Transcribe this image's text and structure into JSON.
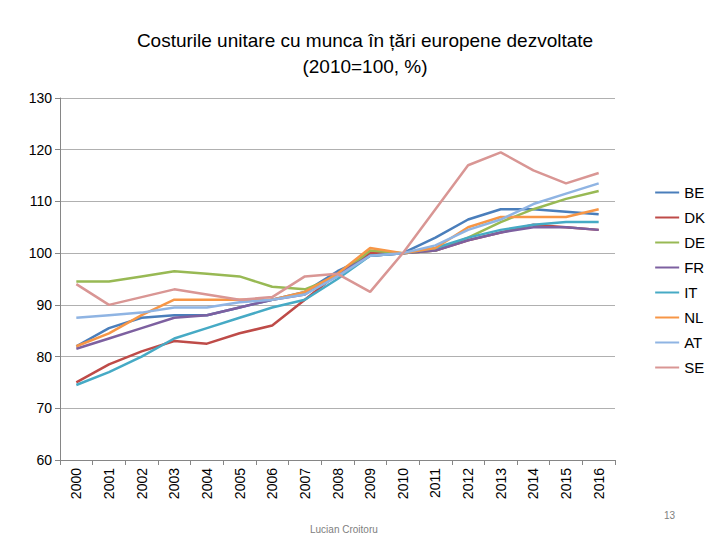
{
  "chart_data": {
    "type": "line",
    "title": "Costurile unitare cu munca în țări europene dezvoltate\n(2010=100, %)",
    "categories": [
      "2000",
      "2001",
      "2002",
      "2003",
      "2004",
      "2005",
      "2006",
      "2007",
      "2008",
      "2009",
      "2010",
      "2011",
      "2012",
      "2013",
      "2014",
      "2015",
      "2016"
    ],
    "series": [
      {
        "name": "BE",
        "color": "#4a7ebb",
        "values": [
          82,
          85.5,
          87.5,
          88,
          88,
          89.5,
          91,
          92.5,
          96.5,
          99.5,
          100,
          103,
          106.5,
          108.5,
          108.5,
          108,
          107.5
        ]
      },
      {
        "name": "DK",
        "color": "#be4b48",
        "values": [
          75,
          78.5,
          81,
          83,
          82.5,
          84.5,
          86,
          91,
          96,
          100,
          100,
          100.5,
          102.5,
          104,
          105.5,
          105,
          104.5
        ]
      },
      {
        "name": "DE",
        "color": "#98b954",
        "values": [
          94.5,
          94.5,
          95.5,
          96.5,
          96,
          95.5,
          93.5,
          93,
          95.5,
          100.5,
          100,
          100.5,
          103,
          106,
          108.5,
          110.5,
          112
        ]
      },
      {
        "name": "FR",
        "color": "#7d60a0",
        "values": [
          81.5,
          83.5,
          85.5,
          87.5,
          88,
          89.5,
          91,
          92,
          96,
          99.5,
          100,
          100.5,
          102.5,
          104,
          105,
          105,
          104.5
        ]
      },
      {
        "name": "IT",
        "color": "#46aac5",
        "values": [
          74.5,
          77,
          80,
          83.5,
          85.5,
          87.5,
          89.5,
          91,
          95,
          99.5,
          100,
          101,
          103,
          104.5,
          105.5,
          106,
          106
        ]
      },
      {
        "name": "NL",
        "color": "#f79646",
        "values": [
          82,
          84.5,
          88,
          91,
          91,
          91,
          91,
          92.5,
          96,
          101,
          100,
          101,
          105,
          107,
          107,
          107,
          108.5
        ]
      },
      {
        "name": "AT",
        "color": "#8fb4e3",
        "values": [
          87.5,
          88,
          88.5,
          89.5,
          89.5,
          90.5,
          91,
          92,
          95.5,
          99.5,
          100,
          101.5,
          104.5,
          106.5,
          109.5,
          111.5,
          113.5
        ]
      },
      {
        "name": "SE",
        "color": "#d99694",
        "values": [
          94,
          90,
          91.5,
          93,
          92,
          91,
          91.5,
          95.5,
          96,
          92.5,
          100,
          108.5,
          117,
          119.5,
          116,
          113.5,
          115.5
        ]
      }
    ],
    "ylim": [
      60,
      130
    ],
    "yticks": [
      60,
      70,
      80,
      90,
      100,
      110,
      120,
      130
    ],
    "grid": true,
    "legend": "right",
    "annotations": [
      "Lucian Croitoru",
      "13"
    ]
  }
}
